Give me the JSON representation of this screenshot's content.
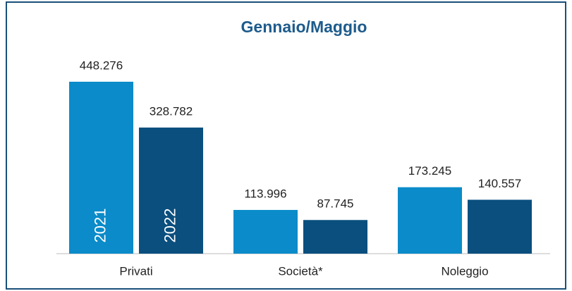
{
  "chart_data": {
    "type": "bar",
    "title": "Gennaio/Maggio",
    "categories": [
      "Privati",
      "Società*",
      "Noleggio"
    ],
    "series": [
      {
        "name": "2021",
        "color": "#0b8bc9",
        "values": [
          448276,
          113996,
          173245
        ],
        "value_labels": [
          "448.276",
          "113.996",
          "173.245"
        ]
      },
      {
        "name": "2022",
        "color": "#0a4f7e",
        "values": [
          328782,
          87745,
          140557
        ],
        "value_labels": [
          "328.782",
          "87.745",
          "140.557"
        ]
      }
    ]
  }
}
